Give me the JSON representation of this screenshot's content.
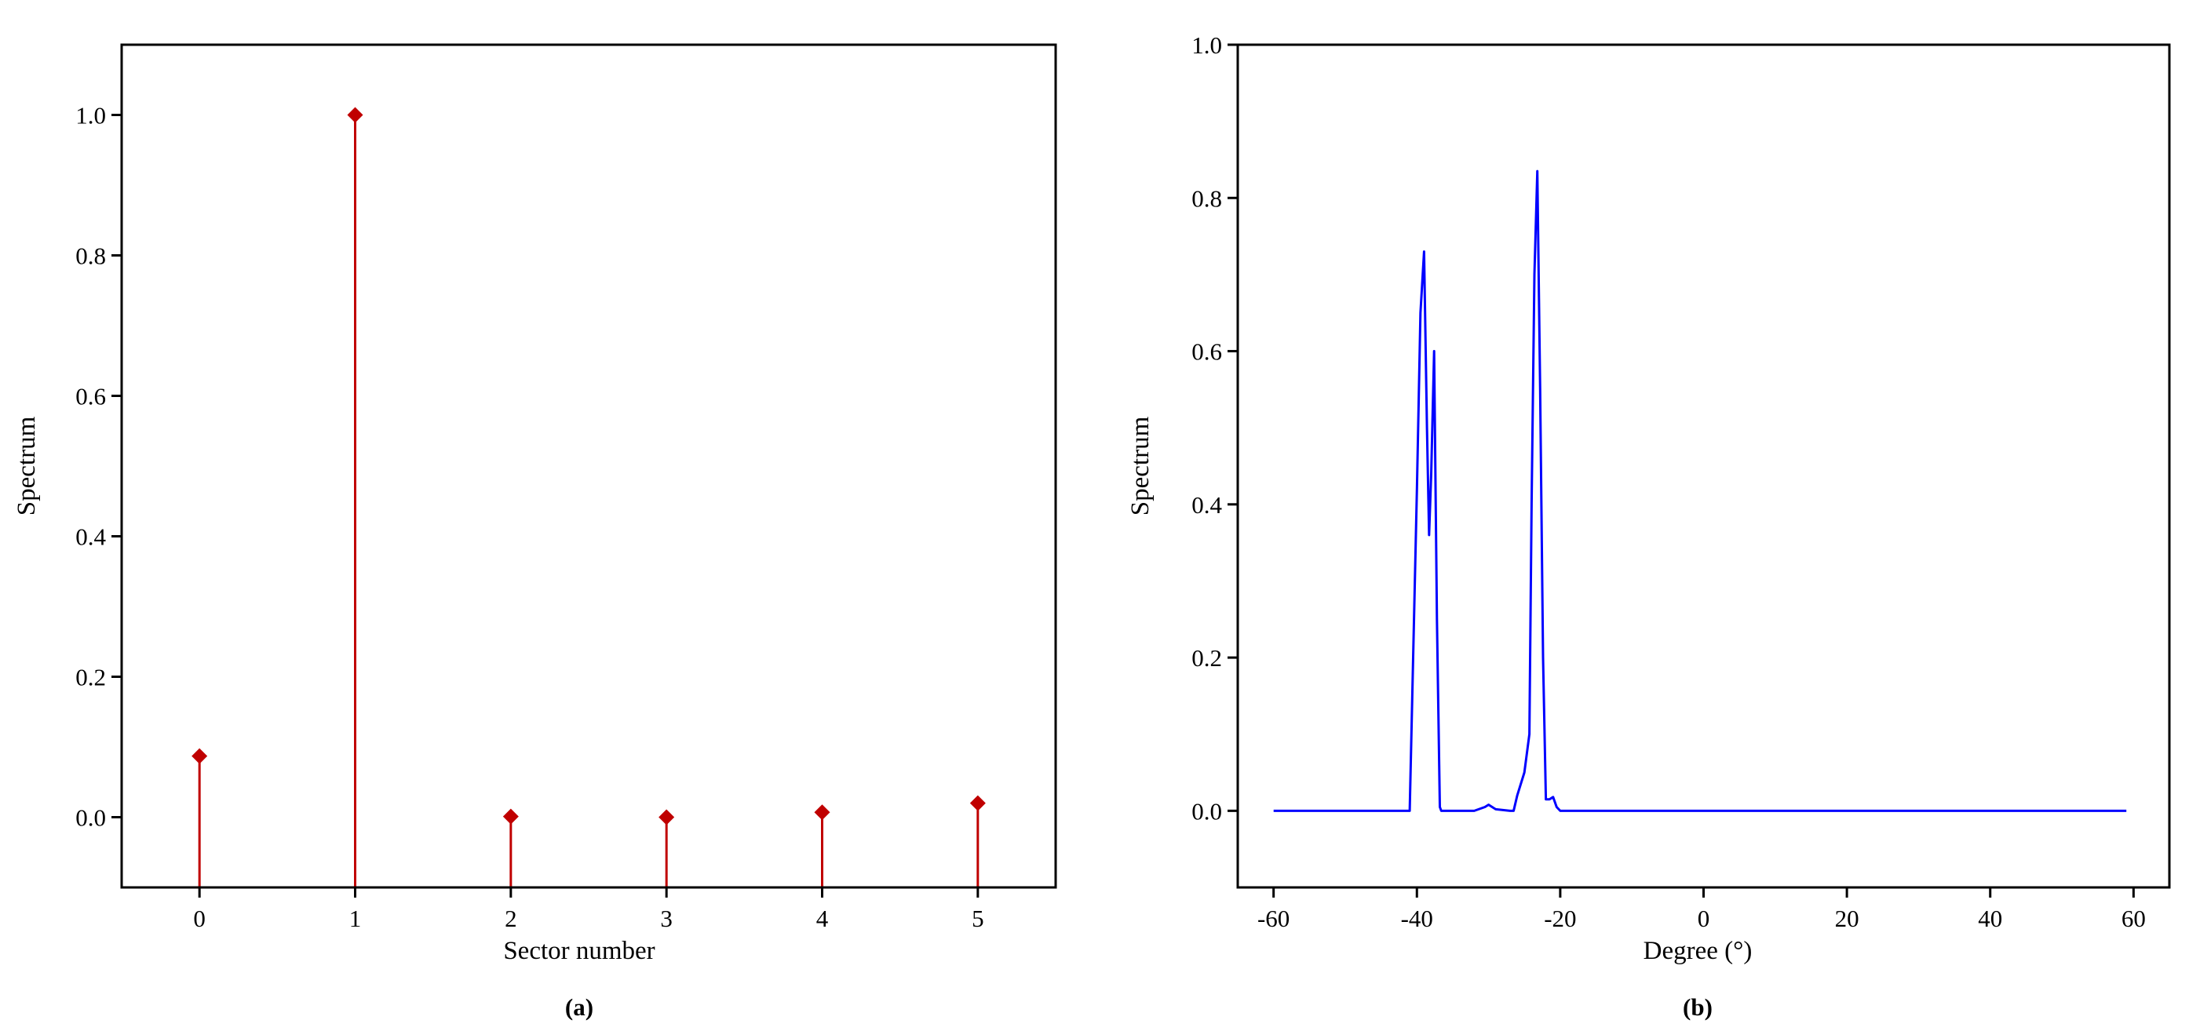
{
  "chart_data": [
    {
      "type": "stem",
      "xlabel": "Sector number",
      "ylabel": "Spectrum",
      "panel_label": "(a)",
      "xlim": [
        -0.5,
        5.5
      ],
      "ylim": [
        -0.1,
        1.1
      ],
      "xticks": [
        0,
        1,
        2,
        3,
        4,
        5
      ],
      "yticks": [
        0.0,
        0.2,
        0.4,
        0.6,
        0.8,
        1.0
      ],
      "xtick_labels": [
        "0",
        "1",
        "2",
        "3",
        "4",
        "5"
      ],
      "ytick_labels": [
        "0.0",
        "0.2",
        "0.4",
        "0.6",
        "0.8",
        "1.0"
      ],
      "x": [
        0,
        1,
        2,
        3,
        4,
        5
      ],
      "values": [
        0.087,
        1.0,
        0.001,
        0.0,
        0.007,
        0.02
      ],
      "color": "#c00000",
      "marker": "diamond",
      "grid": false
    },
    {
      "type": "line",
      "xlabel": "Degree (°)",
      "ylabel": "Spectrum",
      "panel_label": "(b)",
      "xlim": [
        -65,
        65
      ],
      "ylim": [
        -0.1,
        1.0
      ],
      "xticks": [
        -60,
        -40,
        -20,
        0,
        20,
        40,
        60
      ],
      "yticks": [
        0.0,
        0.2,
        0.4,
        0.6,
        0.8,
        1.0
      ],
      "xtick_labels": [
        "-60",
        "-40",
        "-20",
        "0",
        "20",
        "40",
        "60"
      ],
      "ytick_labels": [
        "0.0",
        "0.2",
        "0.4",
        "0.6",
        "0.8",
        "1.0"
      ],
      "color": "#0000ff",
      "grid": false,
      "series": [
        {
          "x": [
            -60,
            -41,
            -40,
            -39.5,
            -39,
            -38.6,
            -38.3,
            -38,
            -37.6,
            -37.2,
            -36.8,
            -36.6,
            -36,
            -35,
            -32,
            -30.5,
            -30,
            -29.5,
            -29,
            -27,
            -26.5,
            -26,
            -25,
            -24.3,
            -24,
            -23.6,
            -23.2,
            -22.8,
            -22.4,
            -22,
            -21.5,
            -21,
            -20.5,
            -20,
            -10,
            0,
            20,
            40,
            59
          ],
          "y": [
            0,
            0,
            0.42,
            0.65,
            0.73,
            0.5,
            0.36,
            0.44,
            0.6,
            0.25,
            0.005,
            0.0,
            0.0,
            0.0,
            0.0,
            0.005,
            0.008,
            0.005,
            0.002,
            0.0,
            0.0,
            0.02,
            0.05,
            0.1,
            0.4,
            0.7,
            0.835,
            0.55,
            0.2,
            0.015,
            0.015,
            0.018,
            0.005,
            0.0,
            0.0,
            0.0,
            0.0,
            0.0,
            0.0
          ]
        }
      ]
    }
  ]
}
